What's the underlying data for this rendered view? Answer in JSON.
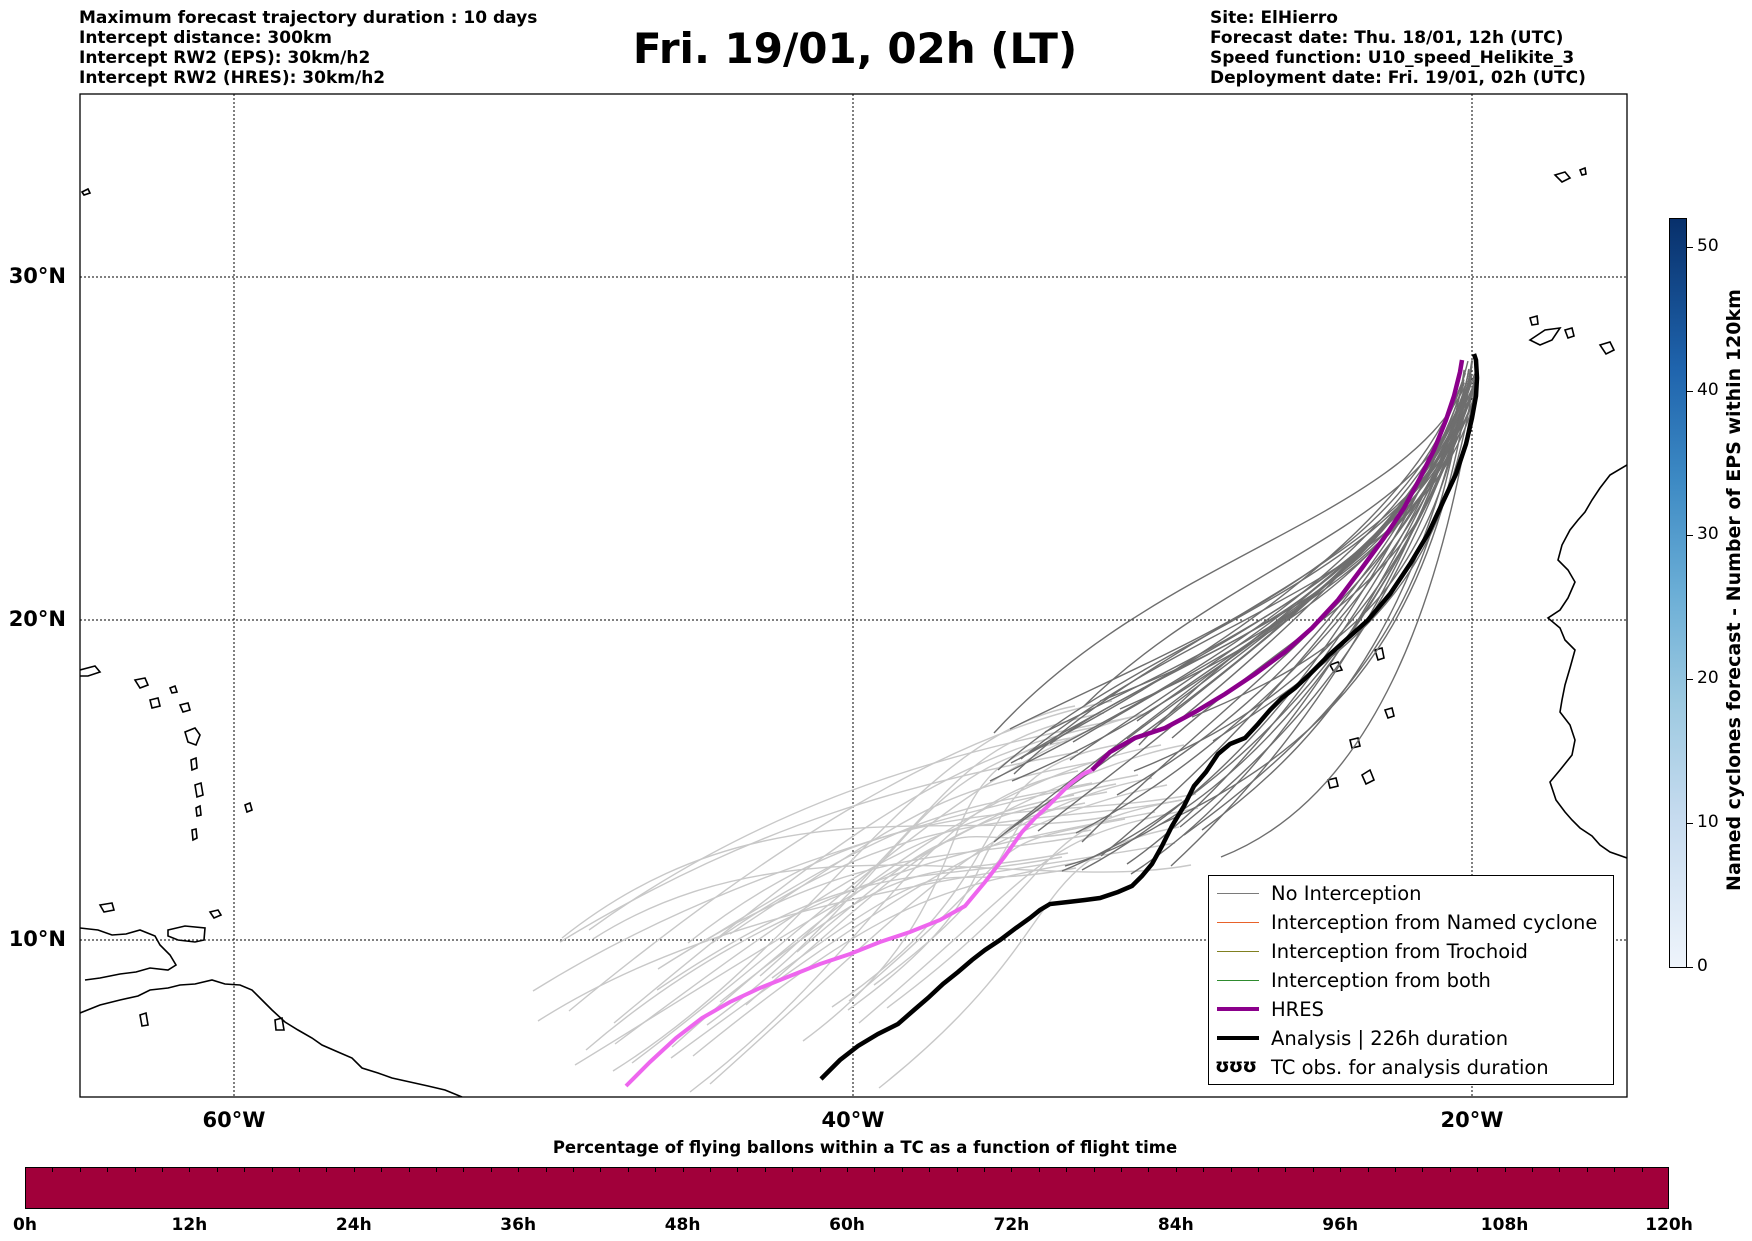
{
  "header": {
    "info_left": [
      "Maximum forecast trajectory duration : 10 days",
      "Intercept distance: 300km",
      "Intercept RW2 (EPS):  30km/h2",
      "Intercept RW2 (HRES): 30km/h2"
    ],
    "title": "Fri. 19/01, 02h (LT)",
    "info_right": [
      "Site: ElHierro",
      "Forecast date: Thu. 18/01, 12h (UTC)",
      "Speed function: U10_speed_Helikite_3",
      "Deployment date: Fri. 19/01, 02h (UTC)"
    ]
  },
  "map": {
    "lat_labels": [
      "30°N",
      "20°N",
      "10°N"
    ],
    "lon_labels": [
      "60°W",
      "40°W",
      "20°W"
    ],
    "extent": {
      "lon": [
        -65,
        -15
      ],
      "lat": [
        5.4,
        34.7
      ]
    }
  },
  "legend": {
    "items": [
      {
        "label": "No Interception",
        "color": "#7a7a7a"
      },
      {
        "label": "Interception from Named cyclone",
        "color": "#e8622a"
      },
      {
        "label": "Interception from Trochoid",
        "color": "#808020"
      },
      {
        "label": "Interception from both",
        "color": "#2e8b2e"
      },
      {
        "label": "HRES",
        "color": "#8b008b"
      },
      {
        "label": "Analysis | 226h duration",
        "color": "#000000"
      },
      {
        "label": "TC obs. for analysis duration",
        "symbol": "ʊʊʊ"
      }
    ]
  },
  "colorbar": {
    "title": "Named cyclones forecast - Number of EPS within 120km",
    "ticks": [
      "0",
      "10",
      "20",
      "30",
      "40",
      "50"
    ],
    "range": [
      0,
      52
    ]
  },
  "bottom_bar": {
    "title": "Percentage of flying ballons within a TC as a function of flight time",
    "color": "#a1003a",
    "ticks": [
      "0h",
      "12h",
      "24h",
      "36h",
      "48h",
      "60h",
      "72h",
      "84h",
      "96h",
      "108h",
      "120h"
    ]
  },
  "colors": {
    "ensemble_dark": "#6e6e6e",
    "ensemble_light": "#c8c8c8",
    "hres_dark": "#8b008b",
    "hres_light": "#ee66ee",
    "analysis": "#000000"
  }
}
